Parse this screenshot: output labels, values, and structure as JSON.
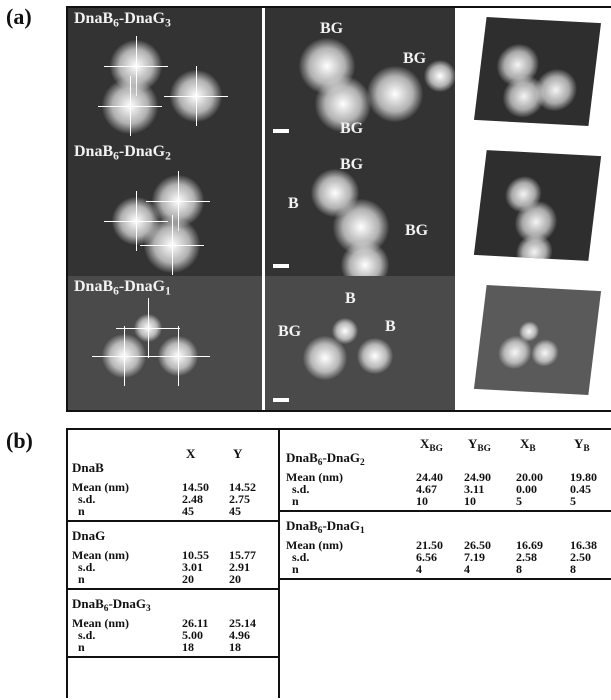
{
  "panel_a": {
    "label": "(a)",
    "rows": [
      {
        "name": [
          "DnaB",
          "6",
          "-DnaG",
          "3"
        ],
        "annotations": [
          "BG",
          "BG",
          "BG"
        ]
      },
      {
        "name": [
          "DnaB",
          "6",
          "-DnaG",
          "2"
        ],
        "annotations": [
          "BG",
          "B",
          "BG"
        ]
      },
      {
        "name": [
          "DnaB",
          "6",
          "-DnaG",
          "1"
        ],
        "annotations": [
          "B",
          "BG",
          "B"
        ]
      }
    ]
  },
  "panel_b": {
    "label": "(b)",
    "left_table": {
      "headers": [
        [
          "X"
        ],
        [
          "Y"
        ]
      ],
      "sections": [
        {
          "name": [
            "DnaB"
          ],
          "rows": [
            {
              "label": "Mean (nm)",
              "values": [
                "14.50",
                "14.52"
              ]
            },
            {
              "label": "s.d.",
              "values": [
                "2.48",
                "2.75"
              ]
            },
            {
              "label": "n",
              "values": [
                "45",
                "45"
              ]
            }
          ]
        },
        {
          "name": [
            "DnaG"
          ],
          "rows": [
            {
              "label": "Mean (nm)",
              "values": [
                "10.55",
                "15.77"
              ]
            },
            {
              "label": "s.d.",
              "values": [
                "3.01",
                "2.91"
              ]
            },
            {
              "label": "n",
              "values": [
                "20",
                "20"
              ]
            }
          ]
        },
        {
          "name": [
            "DnaB",
            "6",
            "-DnaG",
            "3"
          ],
          "rows": [
            {
              "label": "Mean (nm)",
              "values": [
                "26.11",
                "25.14"
              ]
            },
            {
              "label": "s.d.",
              "values": [
                "5.00",
                "4.96"
              ]
            },
            {
              "label": "n",
              "values": [
                "18",
                "18"
              ]
            }
          ]
        }
      ]
    },
    "right_table": {
      "headers": [
        [
          "X",
          "BG"
        ],
        [
          "Y",
          "BG"
        ],
        [
          "X",
          "B"
        ],
        [
          "Y",
          "B"
        ]
      ],
      "sections": [
        {
          "name": [
            "DnaB",
            "6",
            "-DnaG",
            "2"
          ],
          "rows": [
            {
              "label": "Mean (nm)",
              "values": [
                "24.40",
                "24.90",
                "20.00",
                "19.80"
              ]
            },
            {
              "label": "s.d.",
              "values": [
                "4.67",
                "3.11",
                "0.00",
                "0.45"
              ]
            },
            {
              "label": "n",
              "values": [
                "10",
                "10",
                "5",
                "5"
              ]
            }
          ]
        },
        {
          "name": [
            "DnaB",
            "6",
            "-DnaG",
            "1"
          ],
          "rows": [
            {
              "label": "Mean (nm)",
              "values": [
                "21.50",
                "26.50",
                "16.69",
                "16.38"
              ]
            },
            {
              "label": "s.d.",
              "values": [
                "6.56",
                "7.19",
                "2.58",
                "2.50"
              ]
            },
            {
              "label": "n",
              "values": [
                "4",
                "4",
                "8",
                "8"
              ]
            }
          ]
        }
      ]
    }
  }
}
